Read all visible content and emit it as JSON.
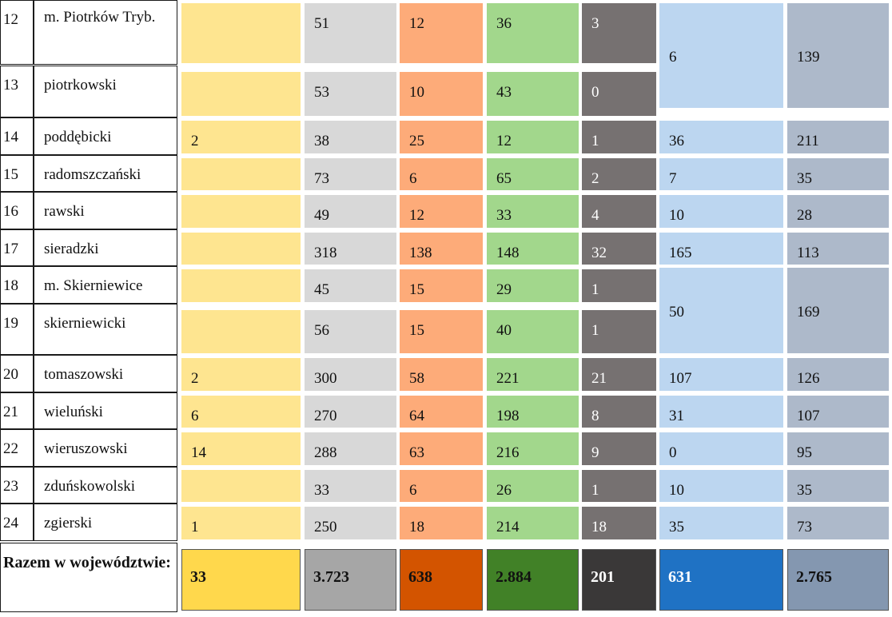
{
  "colors": {
    "col1": "#fee590",
    "col2": "#d8d8d8",
    "col3": "#fdab79",
    "col4": "#a2d78c",
    "col5": "#767171",
    "col6": "#bcd6f0",
    "col7": "#adb9ca",
    "foot1": "#ffd84c",
    "foot2": "#a6a6a6",
    "foot3": "#d35400",
    "foot4": "#418127",
    "foot5": "#3a3838",
    "foot6": "#1f72c4",
    "foot7": "#8497b0"
  },
  "rows": [
    {
      "num": "12",
      "name": "m. Piotrków Tryb.",
      "c1": "",
      "c2": "51",
      "c3": "12",
      "c4": "36",
      "c5": "3"
    },
    {
      "num": "13",
      "name": "piotrkowski",
      "c1": "",
      "c2": "53",
      "c3": "10",
      "c4": "43",
      "c5": "0"
    },
    {
      "num": "14",
      "name": "poddębicki",
      "c1": "2",
      "c2": "38",
      "c3": "25",
      "c4": "12",
      "c5": "1",
      "c6": "36",
      "c7": "211"
    },
    {
      "num": "15",
      "name": "radomszczański",
      "c1": "",
      "c2": "73",
      "c3": "6",
      "c4": "65",
      "c5": "2",
      "c6": "7",
      "c7": "35"
    },
    {
      "num": "16",
      "name": "rawski",
      "c1": "",
      "c2": "49",
      "c3": "12",
      "c4": "33",
      "c5": "4",
      "c6": "10",
      "c7": "28"
    },
    {
      "num": "17",
      "name": "sieradzki",
      "c1": "",
      "c2": "318",
      "c3": "138",
      "c4": "148",
      "c5": "32",
      "c6": "165",
      "c7": "113"
    },
    {
      "num": "18",
      "name": "m. Skierniewice",
      "c1": "",
      "c2": "45",
      "c3": "15",
      "c4": "29",
      "c5": "1"
    },
    {
      "num": "19",
      "name": "skierniewicki",
      "c1": "",
      "c2": "56",
      "c3": "15",
      "c4": "40",
      "c5": "1"
    },
    {
      "num": "20",
      "name": "tomaszowski",
      "c1": "2",
      "c2": "300",
      "c3": "58",
      "c4": "221",
      "c5": "21",
      "c6": "107",
      "c7": "126"
    },
    {
      "num": "21",
      "name": "wieluński",
      "c1": "6",
      "c2": "270",
      "c3": "64",
      "c4": "198",
      "c5": "8",
      "c6": "31",
      "c7": "107"
    },
    {
      "num": "22",
      "name": "wieruszowski",
      "c1": "14",
      "c2": "288",
      "c3": "63",
      "c4": "216",
      "c5": "9",
      "c6": "0",
      "c7": "95"
    },
    {
      "num": "23",
      "name": "zduńskowolski",
      "c1": "",
      "c2": "33",
      "c3": "6",
      "c4": "26",
      "c5": "1",
      "c6": "10",
      "c7": "35"
    },
    {
      "num": "24",
      "name": "zgierski",
      "c1": "1",
      "c2": "250",
      "c3": "18",
      "c4": "214",
      "c5": "18",
      "c6": "35",
      "c7": "73"
    }
  ],
  "merged": [
    {
      "c6": "6",
      "c7": "139"
    },
    {
      "c6": "50",
      "c7": "169"
    }
  ],
  "footer": {
    "label": "Razem w województwie:",
    "values": [
      "33",
      "3.723",
      "638",
      "2.884",
      "201",
      "631",
      "2.765"
    ]
  }
}
